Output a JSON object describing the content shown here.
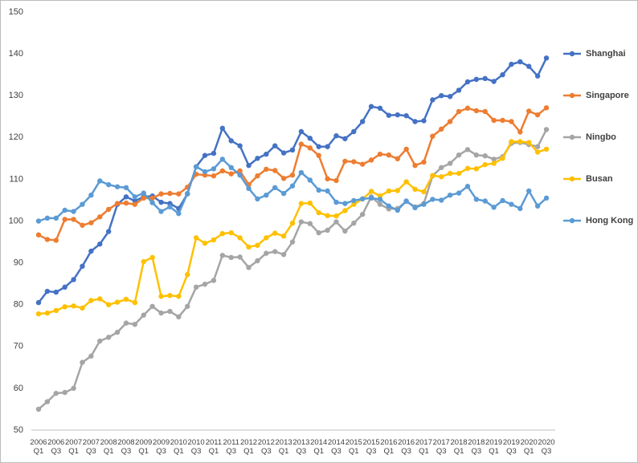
{
  "chart_data": {
    "type": "line",
    "categories": [
      "2006 Q1",
      null,
      "2006 Q3",
      null,
      "2007 Q1",
      null,
      "2007 Q3",
      null,
      "2008 Q1",
      null,
      "2008 Q3",
      null,
      "2009 Q1",
      null,
      "2009 Q3",
      null,
      "2010 Q1",
      null,
      "2010 Q3",
      null,
      "2011 Q1",
      null,
      "2011 Q3",
      null,
      "2012 Q1",
      null,
      "2012 Q3",
      null,
      "2013 Q1",
      null,
      "2013 Q3",
      null,
      "2014 Q1",
      null,
      "2014 Q3",
      null,
      "2015 Q1",
      null,
      "2015 Q3",
      null,
      "2016 Q1",
      null,
      "2016 Q3",
      null,
      "2017 Q1",
      null,
      "2017 Q3",
      null,
      "2018 Q1",
      null,
      "2018 Q3",
      null,
      "2019 Q1",
      null,
      "2019 Q3",
      null,
      "2020 Q1",
      null,
      "2020 Q3"
    ],
    "series": [
      {
        "name": "Shanghai",
        "color": "#4472c4",
        "values": [
          80.5,
          83.2,
          83,
          84.2,
          86,
          89.2,
          92.8,
          94.5,
          97.5,
          104,
          105.8,
          104.8,
          105.8,
          106,
          104.5,
          104.2,
          103,
          106.5,
          113,
          115.7,
          116.2,
          122.2,
          119.2,
          118,
          113.3,
          115,
          116,
          118,
          116.3,
          117,
          121.4,
          119.8,
          117.8,
          117.8,
          120.4,
          119.7,
          121.4,
          123.8,
          127.4,
          127,
          125.3,
          125.4,
          125.2,
          123.8,
          124,
          129,
          130,
          129.8,
          131.3,
          133.3,
          133.9,
          134.1,
          133.4,
          135,
          137.5,
          138.1,
          137,
          134.7,
          139
        ]
      },
      {
        "name": "Singapore",
        "color": "#ed7d31",
        "values": [
          96.7,
          95.6,
          95.4,
          100.4,
          100.4,
          99,
          99.6,
          101,
          102.8,
          104.2,
          104.3,
          104,
          105.5,
          105.5,
          106.5,
          106.6,
          106.5,
          108.1,
          111.2,
          111,
          110.8,
          112,
          111.3,
          112,
          108.7,
          110.8,
          112.4,
          112.1,
          110.2,
          111,
          118.4,
          117.5,
          115.7,
          110.1,
          109.7,
          114.3,
          114.2,
          113.6,
          114.6,
          116,
          115.8,
          114.9,
          117.2,
          113.3,
          114.1,
          120.3,
          122,
          123.8,
          126.2,
          127,
          126.4,
          126.2,
          124.1,
          124.1,
          123.8,
          121.3,
          126.3,
          125.4,
          127.1
        ]
      },
      {
        "name": "Ningbo",
        "color": "#a5a5a5",
        "values": [
          55,
          56.8,
          58.8,
          59,
          60,
          66.2,
          67.7,
          71.3,
          72.2,
          73.4,
          75.6,
          75.3,
          77.5,
          79.6,
          78,
          78.4,
          77.1,
          79.6,
          84.2,
          84.9,
          85.8,
          91.8,
          91.3,
          91.4,
          88.9,
          90.5,
          92.3,
          92.7,
          92,
          95,
          99.8,
          99.4,
          97.2,
          97.8,
          99.8,
          97.6,
          99.5,
          101.6,
          105.8,
          104,
          102.9,
          103,
          104.7,
          103.4,
          104.2,
          110.8,
          112.8,
          113.8,
          115.8,
          117.1,
          115.8,
          115.6,
          114.8,
          115.4,
          118.6,
          118.8,
          118.3,
          117.8,
          121.9
        ]
      },
      {
        "name": "Busan",
        "color": "#ffc000",
        "values": [
          77.8,
          78,
          78.6,
          79.5,
          79.7,
          79.2,
          81,
          81.4,
          80,
          80.6,
          81.3,
          80.5,
          90.3,
          91.3,
          82,
          82.2,
          82,
          87.2,
          96,
          94.7,
          95.5,
          97,
          97.2,
          96,
          93.8,
          94.2,
          96,
          97.1,
          96.4,
          99.5,
          104.2,
          104.3,
          102,
          101.3,
          101.2,
          102.5,
          104,
          105.3,
          107.1,
          106,
          107.2,
          107.3,
          109.4,
          107.6,
          107,
          110.9,
          110.6,
          111.4,
          111.4,
          112.6,
          112.5,
          113.5,
          113.8,
          115,
          119,
          119,
          118.8,
          116.5,
          117.2
        ]
      },
      {
        "name": "Hong Kong",
        "color": "#5b9bd5",
        "values": [
          100,
          100.7,
          100.7,
          102.6,
          102.3,
          104,
          106.2,
          109.6,
          108.7,
          108.2,
          108,
          105.8,
          106.7,
          104.4,
          102.3,
          103.4,
          101.8,
          106.6,
          113,
          111.8,
          112.5,
          114.8,
          112.8,
          111,
          107.8,
          105.3,
          106.2,
          108,
          106.6,
          108.4,
          111.6,
          109.8,
          107.4,
          107.2,
          104.5,
          104.2,
          104.9,
          105.3,
          105.5,
          105.2,
          103.6,
          102.6,
          104.8,
          103.2,
          104,
          105.2,
          105,
          106.2,
          106.7,
          108.3,
          105.2,
          104.8,
          103.3,
          104.9,
          104,
          103,
          107.2,
          103.6,
          105.5
        ]
      }
    ],
    "ylim": [
      50,
      150
    ],
    "yticks": [
      50,
      60,
      70,
      80,
      90,
      100,
      110,
      120,
      130,
      140,
      150
    ],
    "grid": false,
    "legend": "right"
  }
}
